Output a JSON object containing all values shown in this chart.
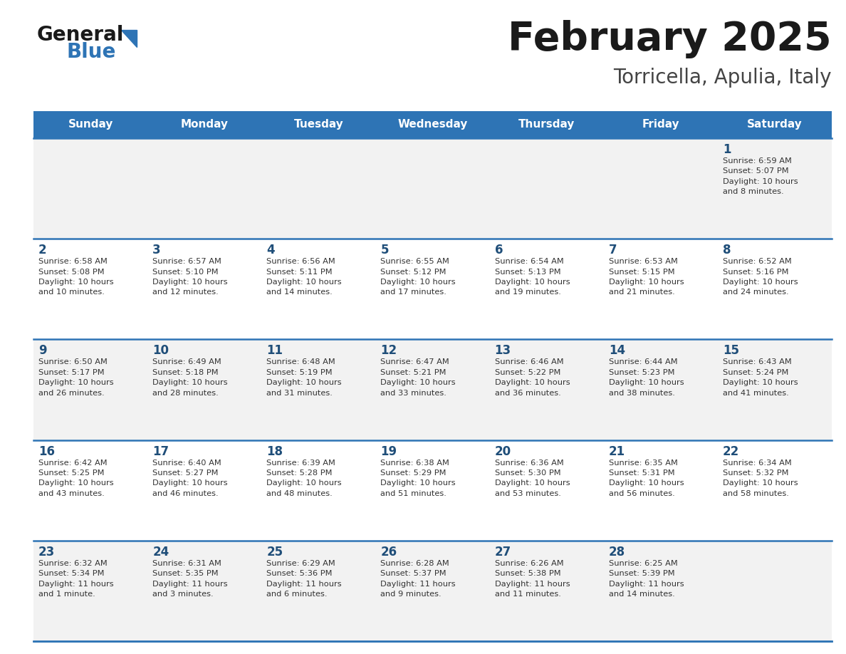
{
  "title": "February 2025",
  "subtitle": "Torricella, Apulia, Italy",
  "days_of_week": [
    "Sunday",
    "Monday",
    "Tuesday",
    "Wednesday",
    "Thursday",
    "Friday",
    "Saturday"
  ],
  "header_bg": "#2E74B5",
  "header_text_color": "#FFFFFF",
  "row_bg_light": "#F2F2F2",
  "row_bg_white": "#FFFFFF",
  "cell_text_color": "#333333",
  "day_num_color": "#1F4E79",
  "line_color": "#2E74B5",
  "logo_general_color": "#1a1a1a",
  "logo_blue_color": "#2E74B5",
  "title_color": "#1a1a1a",
  "subtitle_color": "#444444",
  "fig_width": 11.88,
  "fig_height": 9.18,
  "weeks": [
    [
      {
        "day": null,
        "sunrise": null,
        "sunset": null,
        "daylight": null
      },
      {
        "day": null,
        "sunrise": null,
        "sunset": null,
        "daylight": null
      },
      {
        "day": null,
        "sunrise": null,
        "sunset": null,
        "daylight": null
      },
      {
        "day": null,
        "sunrise": null,
        "sunset": null,
        "daylight": null
      },
      {
        "day": null,
        "sunrise": null,
        "sunset": null,
        "daylight": null
      },
      {
        "day": null,
        "sunrise": null,
        "sunset": null,
        "daylight": null
      },
      {
        "day": 1,
        "sunrise": "6:59 AM",
        "sunset": "5:07 PM",
        "daylight": "10 hours\nand 8 minutes."
      }
    ],
    [
      {
        "day": 2,
        "sunrise": "6:58 AM",
        "sunset": "5:08 PM",
        "daylight": "10 hours\nand 10 minutes."
      },
      {
        "day": 3,
        "sunrise": "6:57 AM",
        "sunset": "5:10 PM",
        "daylight": "10 hours\nand 12 minutes."
      },
      {
        "day": 4,
        "sunrise": "6:56 AM",
        "sunset": "5:11 PM",
        "daylight": "10 hours\nand 14 minutes."
      },
      {
        "day": 5,
        "sunrise": "6:55 AM",
        "sunset": "5:12 PM",
        "daylight": "10 hours\nand 17 minutes."
      },
      {
        "day": 6,
        "sunrise": "6:54 AM",
        "sunset": "5:13 PM",
        "daylight": "10 hours\nand 19 minutes."
      },
      {
        "day": 7,
        "sunrise": "6:53 AM",
        "sunset": "5:15 PM",
        "daylight": "10 hours\nand 21 minutes."
      },
      {
        "day": 8,
        "sunrise": "6:52 AM",
        "sunset": "5:16 PM",
        "daylight": "10 hours\nand 24 minutes."
      }
    ],
    [
      {
        "day": 9,
        "sunrise": "6:50 AM",
        "sunset": "5:17 PM",
        "daylight": "10 hours\nand 26 minutes."
      },
      {
        "day": 10,
        "sunrise": "6:49 AM",
        "sunset": "5:18 PM",
        "daylight": "10 hours\nand 28 minutes."
      },
      {
        "day": 11,
        "sunrise": "6:48 AM",
        "sunset": "5:19 PM",
        "daylight": "10 hours\nand 31 minutes."
      },
      {
        "day": 12,
        "sunrise": "6:47 AM",
        "sunset": "5:21 PM",
        "daylight": "10 hours\nand 33 minutes."
      },
      {
        "day": 13,
        "sunrise": "6:46 AM",
        "sunset": "5:22 PM",
        "daylight": "10 hours\nand 36 minutes."
      },
      {
        "day": 14,
        "sunrise": "6:44 AM",
        "sunset": "5:23 PM",
        "daylight": "10 hours\nand 38 minutes."
      },
      {
        "day": 15,
        "sunrise": "6:43 AM",
        "sunset": "5:24 PM",
        "daylight": "10 hours\nand 41 minutes."
      }
    ],
    [
      {
        "day": 16,
        "sunrise": "6:42 AM",
        "sunset": "5:25 PM",
        "daylight": "10 hours\nand 43 minutes."
      },
      {
        "day": 17,
        "sunrise": "6:40 AM",
        "sunset": "5:27 PM",
        "daylight": "10 hours\nand 46 minutes."
      },
      {
        "day": 18,
        "sunrise": "6:39 AM",
        "sunset": "5:28 PM",
        "daylight": "10 hours\nand 48 minutes."
      },
      {
        "day": 19,
        "sunrise": "6:38 AM",
        "sunset": "5:29 PM",
        "daylight": "10 hours\nand 51 minutes."
      },
      {
        "day": 20,
        "sunrise": "6:36 AM",
        "sunset": "5:30 PM",
        "daylight": "10 hours\nand 53 minutes."
      },
      {
        "day": 21,
        "sunrise": "6:35 AM",
        "sunset": "5:31 PM",
        "daylight": "10 hours\nand 56 minutes."
      },
      {
        "day": 22,
        "sunrise": "6:34 AM",
        "sunset": "5:32 PM",
        "daylight": "10 hours\nand 58 minutes."
      }
    ],
    [
      {
        "day": 23,
        "sunrise": "6:32 AM",
        "sunset": "5:34 PM",
        "daylight": "11 hours\nand 1 minute."
      },
      {
        "day": 24,
        "sunrise": "6:31 AM",
        "sunset": "5:35 PM",
        "daylight": "11 hours\nand 3 minutes."
      },
      {
        "day": 25,
        "sunrise": "6:29 AM",
        "sunset": "5:36 PM",
        "daylight": "11 hours\nand 6 minutes."
      },
      {
        "day": 26,
        "sunrise": "6:28 AM",
        "sunset": "5:37 PM",
        "daylight": "11 hours\nand 9 minutes."
      },
      {
        "day": 27,
        "sunrise": "6:26 AM",
        "sunset": "5:38 PM",
        "daylight": "11 hours\nand 11 minutes."
      },
      {
        "day": 28,
        "sunrise": "6:25 AM",
        "sunset": "5:39 PM",
        "daylight": "11 hours\nand 14 minutes."
      },
      {
        "day": null,
        "sunrise": null,
        "sunset": null,
        "daylight": null
      }
    ]
  ]
}
